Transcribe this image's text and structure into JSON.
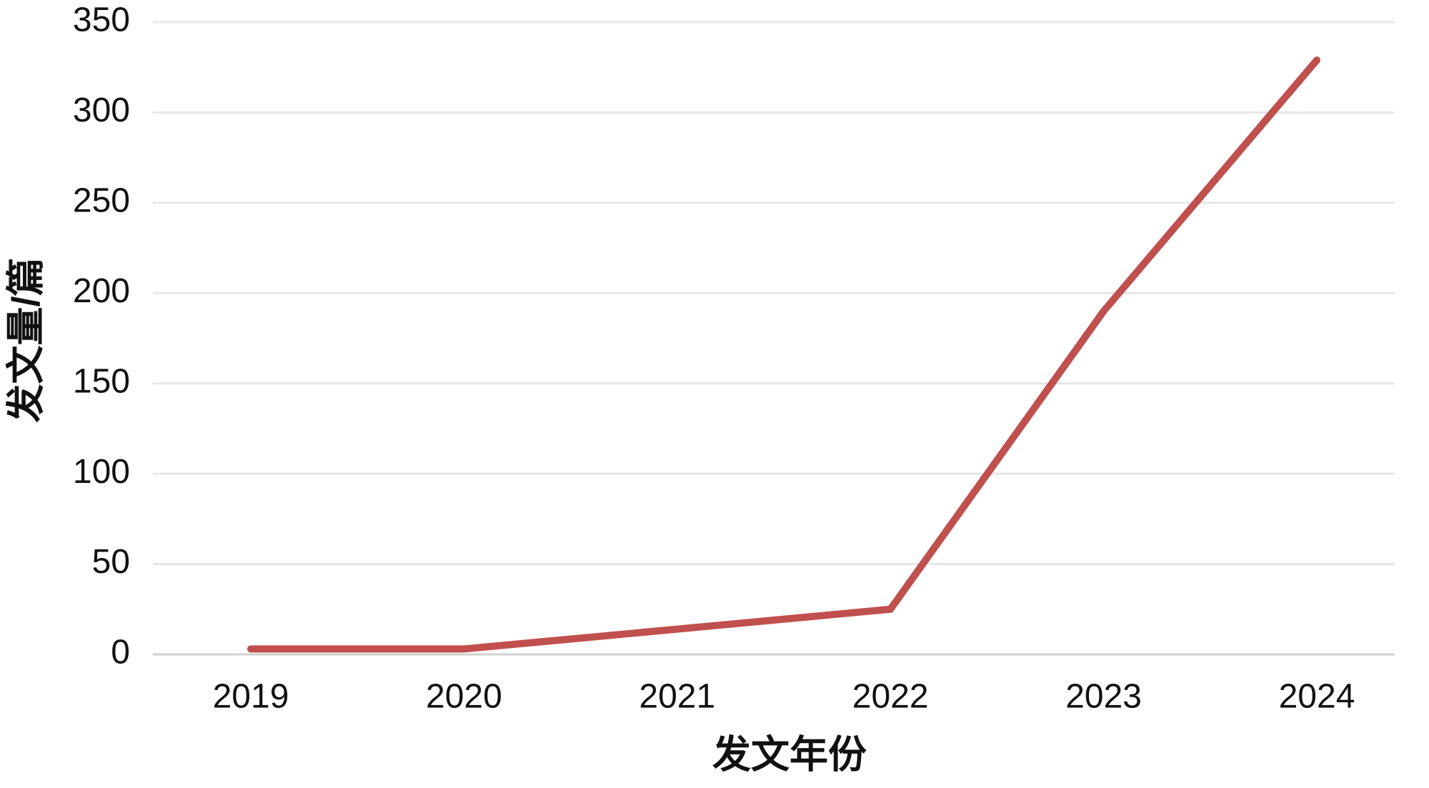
{
  "chart_data": {
    "type": "line",
    "x_label": "发文年份",
    "y_label": "发文量/篇",
    "categories": [
      "2019",
      "2020",
      "2021",
      "2022",
      "2023",
      "2024"
    ],
    "values": [
      3,
      3,
      14,
      25,
      190,
      329
    ],
    "color": "#c0504d",
    "ylim": [
      0,
      350
    ],
    "yticks": [
      0,
      50,
      100,
      150,
      200,
      250,
      300,
      350
    ],
    "grid": true
  }
}
